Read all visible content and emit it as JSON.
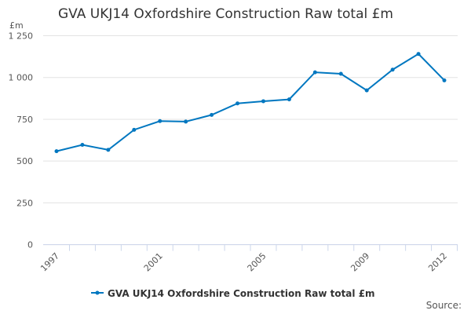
{
  "chart_data": {
    "type": "line",
    "title": "GVA UKJ14 Oxfordshire Construction Raw total £m",
    "ylabel": "£m",
    "xlabel": "",
    "ylim": [
      0,
      1250
    ],
    "yticks": [
      "0",
      "250",
      "500",
      "750",
      "1 000",
      "1 250"
    ],
    "yticks_values": [
      0,
      250,
      500,
      750,
      1000,
      1250
    ],
    "xtick_labels": [
      "1997",
      "2001",
      "2005",
      "2009",
      "2012"
    ],
    "x": [
      1997,
      1998,
      1999,
      2000,
      2001,
      2002,
      2003,
      2004,
      2005,
      2006,
      2007,
      2008,
      2009,
      2010,
      2011,
      2012
    ],
    "series": [
      {
        "name": "GVA UKJ14 Oxfordshire Construction Raw total £m",
        "color": "#0077c0",
        "values": [
          559,
          597,
          567,
          687,
          739,
          736,
          776,
          845,
          858,
          869,
          1031,
          1022,
          923,
          1047,
          1141,
          983
        ]
      }
    ],
    "grid": true,
    "legend": "bottom"
  },
  "source_label": "Source:"
}
